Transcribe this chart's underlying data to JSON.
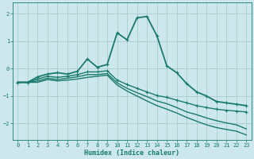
{
  "xlabel": "Humidex (Indice chaleur)",
  "bg_color": "#cce8ec",
  "grid_color": "#aacccc",
  "line_color": "#1a7a6e",
  "xlim": [
    -0.5,
    23.5
  ],
  "ylim": [
    -2.6,
    2.4
  ],
  "xticks": [
    0,
    1,
    2,
    3,
    4,
    5,
    6,
    7,
    8,
    9,
    10,
    11,
    12,
    13,
    14,
    15,
    16,
    17,
    18,
    19,
    20,
    21,
    22,
    23
  ],
  "yticks": [
    -2,
    -1,
    0,
    1,
    2
  ],
  "series": [
    {
      "x": [
        0,
        1,
        2,
        3,
        4,
        5,
        6,
        7,
        8,
        9,
        10,
        11,
        12,
        13,
        14,
        15,
        16,
        17,
        18,
        19,
        20,
        21,
        22,
        23
      ],
      "y": [
        -0.5,
        -0.5,
        -0.3,
        -0.2,
        -0.15,
        -0.2,
        -0.1,
        0.35,
        0.05,
        0.15,
        1.3,
        1.05,
        1.85,
        1.9,
        1.2,
        0.1,
        -0.15,
        -0.55,
        -0.85,
        -1.0,
        -1.2,
        -1.25,
        -1.3,
        -1.35
      ],
      "marker": true,
      "linewidth": 1.3
    },
    {
      "x": [
        0,
        1,
        2,
        3,
        4,
        5,
        6,
        7,
        8,
        9,
        10,
        11,
        12,
        13,
        14,
        15,
        16,
        17,
        18,
        19,
        20,
        21,
        22,
        23
      ],
      "y": [
        -0.5,
        -0.5,
        -0.38,
        -0.28,
        -0.32,
        -0.28,
        -0.22,
        -0.12,
        -0.12,
        -0.08,
        -0.42,
        -0.58,
        -0.72,
        -0.85,
        -0.98,
        -1.05,
        -1.15,
        -1.25,
        -1.35,
        -1.42,
        -1.48,
        -1.52,
        -1.55,
        -1.58
      ],
      "marker": true,
      "linewidth": 1.0
    },
    {
      "x": [
        0,
        1,
        2,
        3,
        4,
        5,
        6,
        7,
        8,
        9,
        10,
        11,
        12,
        13,
        14,
        15,
        16,
        17,
        18,
        19,
        20,
        21,
        22,
        23
      ],
      "y": [
        -0.5,
        -0.5,
        -0.45,
        -0.35,
        -0.4,
        -0.35,
        -0.3,
        -0.22,
        -0.22,
        -0.18,
        -0.52,
        -0.72,
        -0.88,
        -1.02,
        -1.18,
        -1.28,
        -1.42,
        -1.58,
        -1.68,
        -1.8,
        -1.9,
        -1.98,
        -2.05,
        -2.2
      ],
      "marker": false,
      "linewidth": 1.0
    },
    {
      "x": [
        0,
        1,
        2,
        3,
        4,
        5,
        6,
        7,
        8,
        9,
        10,
        11,
        12,
        13,
        14,
        15,
        16,
        17,
        18,
        19,
        20,
        21,
        22,
        23
      ],
      "y": [
        -0.5,
        -0.5,
        -0.5,
        -0.4,
        -0.45,
        -0.42,
        -0.38,
        -0.32,
        -0.28,
        -0.24,
        -0.6,
        -0.82,
        -1.0,
        -1.18,
        -1.35,
        -1.48,
        -1.62,
        -1.78,
        -1.92,
        -2.05,
        -2.15,
        -2.22,
        -2.28,
        -2.42
      ],
      "marker": false,
      "linewidth": 1.0
    }
  ]
}
